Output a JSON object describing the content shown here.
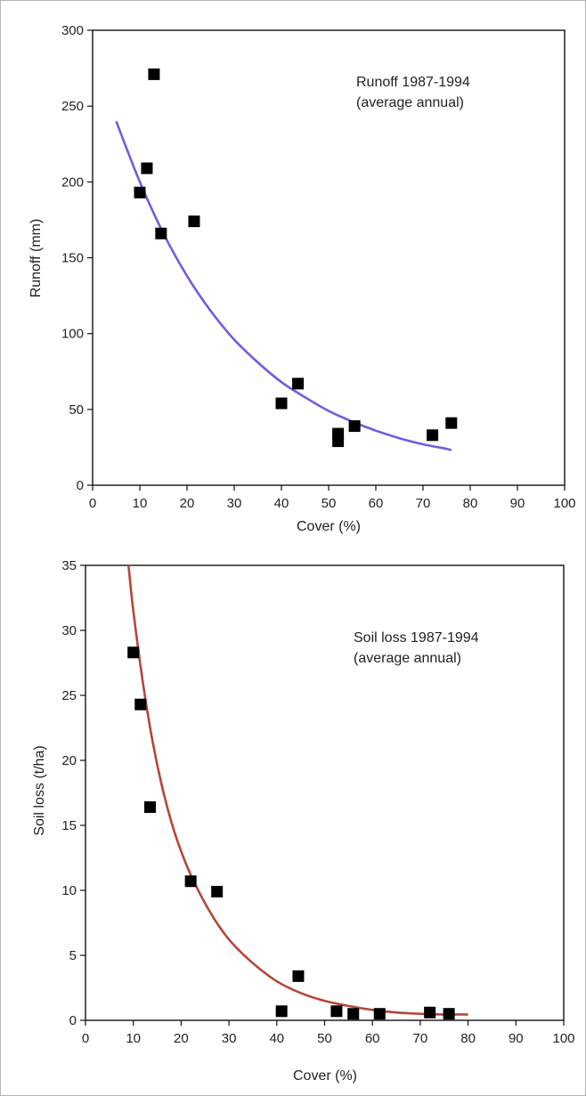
{
  "chart_data": [
    {
      "type": "scatter",
      "xlabel": "Cover (%)",
      "ylabel": "Runoff (mm)",
      "annotation": [
        "Runoff 1987-1994",
        "(average annual)"
      ],
      "xlim": [
        0,
        100
      ],
      "ylim": [
        0,
        300
      ],
      "xticks": [
        0,
        10,
        20,
        30,
        40,
        50,
        60,
        70,
        80,
        90,
        100
      ],
      "yticks": [
        0,
        50,
        100,
        150,
        200,
        250,
        300
      ],
      "grid": false,
      "points": [
        {
          "x": 10,
          "y": 193
        },
        {
          "x": 11.5,
          "y": 209
        },
        {
          "x": 13,
          "y": 271
        },
        {
          "x": 14.5,
          "y": 166
        },
        {
          "x": 21.5,
          "y": 174
        },
        {
          "x": 40,
          "y": 54
        },
        {
          "x": 43.5,
          "y": 67
        },
        {
          "x": 52,
          "y": 29
        },
        {
          "x": 52,
          "y": 34
        },
        {
          "x": 55.5,
          "y": 39
        },
        {
          "x": 72,
          "y": 33
        },
        {
          "x": 76,
          "y": 41
        }
      ],
      "fit_curve": {
        "color": "#6a5fe0",
        "x": [
          5,
          10,
          15,
          20,
          25,
          30,
          35,
          40,
          45,
          50,
          55,
          60,
          65,
          70,
          75,
          76
        ],
        "y": [
          240,
          200,
          166,
          138,
          115,
          96,
          81,
          68,
          58,
          49,
          42,
          36,
          31,
          27,
          24,
          23
        ]
      },
      "marker_color": "#000000"
    },
    {
      "type": "scatter",
      "xlabel": "Cover (%)",
      "ylabel": "Soil loss (t/ha)",
      "annotation": [
        "Soil loss 1987-1994",
        "(average annual)"
      ],
      "xlim": [
        0,
        100
      ],
      "ylim": [
        0,
        35
      ],
      "xticks": [
        0,
        10,
        20,
        30,
        40,
        50,
        60,
        70,
        80,
        90,
        100
      ],
      "yticks": [
        0,
        5,
        10,
        15,
        20,
        25,
        30,
        35
      ],
      "grid": false,
      "points": [
        {
          "x": 10,
          "y": 28.3
        },
        {
          "x": 11.5,
          "y": 24.3
        },
        {
          "x": 13.5,
          "y": 16.4
        },
        {
          "x": 22,
          "y": 10.7
        },
        {
          "x": 27.5,
          "y": 9.9
        },
        {
          "x": 41,
          "y": 0.7
        },
        {
          "x": 44.5,
          "y": 3.4
        },
        {
          "x": 52.5,
          "y": 0.7
        },
        {
          "x": 56,
          "y": 0.5
        },
        {
          "x": 61.5,
          "y": 0.5
        },
        {
          "x": 72,
          "y": 0.6
        },
        {
          "x": 76,
          "y": 0.5
        }
      ],
      "fit_curve": {
        "color": "#b5463a",
        "x": [
          9,
          10,
          12,
          14,
          16,
          18,
          20,
          22,
          25,
          28,
          31,
          35,
          40,
          45,
          50,
          55,
          60,
          65,
          70,
          75,
          80
        ],
        "y": [
          35,
          31.5,
          26,
          21.5,
          18,
          15.2,
          13,
          11.2,
          9,
          7.2,
          5.8,
          4.4,
          3.0,
          2.1,
          1.5,
          1.1,
          0.8,
          0.6,
          0.5,
          0.45,
          0.45
        ]
      },
      "marker_color": "#000000"
    }
  ]
}
